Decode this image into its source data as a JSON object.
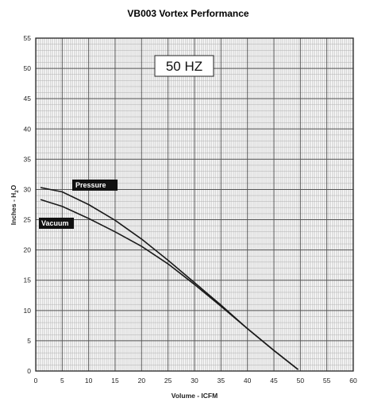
{
  "chart_data": {
    "type": "line",
    "title": "VB003 Vortex Performance",
    "annotation": "50 HZ",
    "xlabel": "Volume - ICFM",
    "ylabel": "Inches - H2O",
    "xlim": [
      0,
      60
    ],
    "ylim": [
      0,
      55
    ],
    "xticks": [
      0,
      5,
      10,
      15,
      20,
      25,
      30,
      35,
      40,
      45,
      50,
      55,
      60
    ],
    "yticks": [
      0,
      5,
      10,
      15,
      20,
      25,
      30,
      35,
      40,
      45,
      50,
      55
    ],
    "grid": true,
    "series": [
      {
        "name": "Pressure",
        "color": "#1a1a1a",
        "x": [
          1,
          5,
          10,
          15,
          20,
          25,
          30,
          35,
          40,
          45,
          49.5
        ],
        "y": [
          30.3,
          29.6,
          27.5,
          24.9,
          21.8,
          18.3,
          14.6,
          10.9,
          7.0,
          3.4,
          0.3
        ]
      },
      {
        "name": "Vacuum",
        "color": "#1a1a1a",
        "x": [
          1,
          5,
          10,
          15,
          20,
          25,
          30,
          35,
          40,
          45,
          49.5
        ],
        "y": [
          28.3,
          27.2,
          25.2,
          23.0,
          20.6,
          17.7,
          14.3,
          10.7,
          7.0,
          3.4,
          0.3
        ]
      }
    ]
  }
}
